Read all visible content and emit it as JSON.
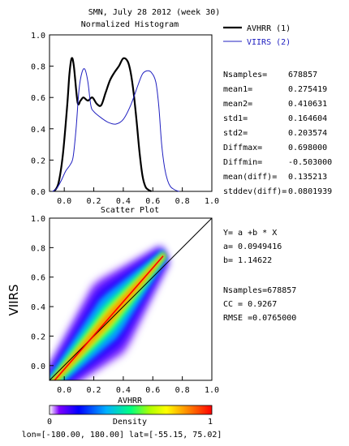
{
  "title": "SMN,  July 28 2012 (week 30)",
  "colors": {
    "avhrr": "#000000",
    "viirs": "#2020c0",
    "fit_line": "#ff0000",
    "identity_line": "#000000"
  },
  "histogram": {
    "title": "Normalized Histogram",
    "legend": [
      {
        "label": "AVHRR (1)",
        "color": "#000000"
      },
      {
        "label": "VIIRS (2)",
        "color": "#2020c0"
      }
    ],
    "stats": [
      {
        "label": "Nsamples=",
        "value": "678857"
      },
      {
        "label": "mean1=",
        "value": "0.275419"
      },
      {
        "label": "mean2=",
        "value": "0.410631"
      },
      {
        "label": "std1=",
        "value": "0.164604"
      },
      {
        "label": "std2=",
        "value": "0.203574"
      },
      {
        "label": "Diffmax=",
        "value": "0.698000"
      },
      {
        "label": "Diffmin=",
        "value": "-0.503000"
      },
      {
        "label": "mean(diff)=",
        "value": "0.135213"
      },
      {
        "label": "stddev(diff)=",
        "value": "0.0801939"
      }
    ]
  },
  "scatter": {
    "title": "Scatter Plot",
    "fit_lines": [
      "Y= a +b * X",
      "a= 0.0949416",
      "b= 1.14622"
    ],
    "stats_lines": [
      "Nsamples=678857",
      "CC = 0.9267",
      "RMSE =0.0765000"
    ]
  },
  "colorbar": {
    "label": "Density",
    "min_label": "0",
    "max_label": "1",
    "stops": [
      "#ffffff",
      "#7f00ff",
      "#0000ff",
      "#00b0ff",
      "#00ff80",
      "#b0ff00",
      "#ffff00",
      "#ff8000",
      "#ff0000"
    ]
  },
  "footer": "lon=[-180.00, 180.00] lat=[-55.15, 75.02]",
  "chart_data": [
    {
      "type": "line",
      "title": "Normalized Histogram",
      "xlim": [
        -0.1,
        1.0
      ],
      "ylim": [
        0.0,
        1.0
      ],
      "xticks": [
        0.0,
        0.2,
        0.4,
        0.6,
        0.8,
        1.0
      ],
      "xtick_labels": [
        "0.0",
        "0.2",
        "0.4",
        "0.6",
        "0.8",
        "1.0"
      ],
      "yticks": [
        0.0,
        0.2,
        0.4,
        0.6,
        0.8,
        1.0
      ],
      "ytick_labels": [
        "0.0",
        "0.2",
        "0.4",
        "0.6",
        "0.8",
        "1.0"
      ],
      "legend_position": "outside-right",
      "grid": false,
      "series": [
        {
          "name": "AVHRR (1)",
          "x": [
            -0.07,
            -0.04,
            -0.01,
            0.02,
            0.035,
            0.05,
            0.065,
            0.09,
            0.11,
            0.13,
            0.16,
            0.19,
            0.22,
            0.25,
            0.28,
            0.31,
            0.34,
            0.37,
            0.4,
            0.43,
            0.45,
            0.47,
            0.49,
            0.51,
            0.53,
            0.55,
            0.57,
            0.59
          ],
          "y": [
            0.0,
            0.05,
            0.23,
            0.55,
            0.75,
            0.85,
            0.8,
            0.57,
            0.58,
            0.6,
            0.58,
            0.6,
            0.56,
            0.55,
            0.63,
            0.71,
            0.76,
            0.8,
            0.85,
            0.83,
            0.76,
            0.63,
            0.45,
            0.25,
            0.1,
            0.03,
            0.01,
            0.0
          ]
        },
        {
          "name": "VIIRS (2)",
          "x": [
            -0.08,
            -0.05,
            -0.02,
            0.01,
            0.04,
            0.06,
            0.08,
            0.1,
            0.12,
            0.14,
            0.16,
            0.18,
            0.2,
            0.25,
            0.3,
            0.35,
            0.4,
            0.45,
            0.5,
            0.53,
            0.56,
            0.59,
            0.62,
            0.64,
            0.66,
            0.68,
            0.7,
            0.72,
            0.74,
            0.76,
            0.78
          ],
          "y": [
            0.0,
            0.02,
            0.07,
            0.13,
            0.17,
            0.22,
            0.4,
            0.65,
            0.76,
            0.78,
            0.7,
            0.55,
            0.51,
            0.47,
            0.44,
            0.43,
            0.46,
            0.55,
            0.68,
            0.75,
            0.77,
            0.76,
            0.7,
            0.55,
            0.3,
            0.15,
            0.07,
            0.03,
            0.015,
            0.005,
            0.0
          ]
        }
      ]
    },
    {
      "type": "scatter",
      "title": "Scatter Plot",
      "xlabel": "AVHRR",
      "ylabel": "VIIRS",
      "xlim": [
        -0.1,
        1.0
      ],
      "ylim": [
        -0.1,
        1.0
      ],
      "xticks": [
        0.0,
        0.2,
        0.4,
        0.6,
        0.8,
        1.0
      ],
      "xtick_labels": [
        "0.0",
        "0.2",
        "0.4",
        "0.6",
        "0.8",
        "1.0"
      ],
      "yticks": [
        0.0,
        0.2,
        0.4,
        0.6,
        0.8,
        1.0
      ],
      "ytick_labels": [
        "0.0",
        "0.2",
        "0.4",
        "0.6",
        "0.8",
        "1.0"
      ],
      "grid": false,
      "density_cloud": {
        "x_range": [
          -0.09,
          0.68
        ],
        "y_range": [
          -0.08,
          0.82
        ],
        "max_density_along": "fit line"
      },
      "fit_line": {
        "a": 0.0949416,
        "b": 1.14622,
        "x_range": [
          -0.08,
          0.67
        ]
      },
      "identity_line": {
        "x_range": [
          -0.1,
          1.0
        ]
      }
    }
  ]
}
